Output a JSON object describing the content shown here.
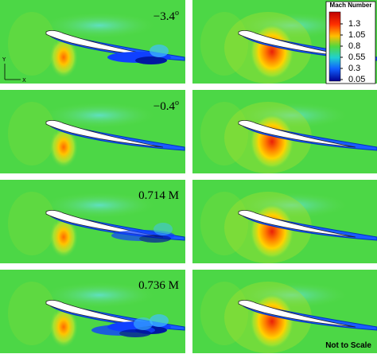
{
  "panel_labels": [
    {
      "value": "−3.4",
      "superscript": "o"
    },
    {
      "value": "−0.4",
      "superscript": "o"
    },
    {
      "value": "0.714 M"
    },
    {
      "value": "0.736 M"
    }
  ],
  "colorbar": {
    "title": "Mach Number",
    "ticks": [
      "1.3",
      "1.05",
      "0.8",
      "0.55",
      "0.3",
      "0.05"
    ]
  },
  "axes": {
    "y": "Y",
    "x": "X"
  },
  "note": "Not to Scale"
}
